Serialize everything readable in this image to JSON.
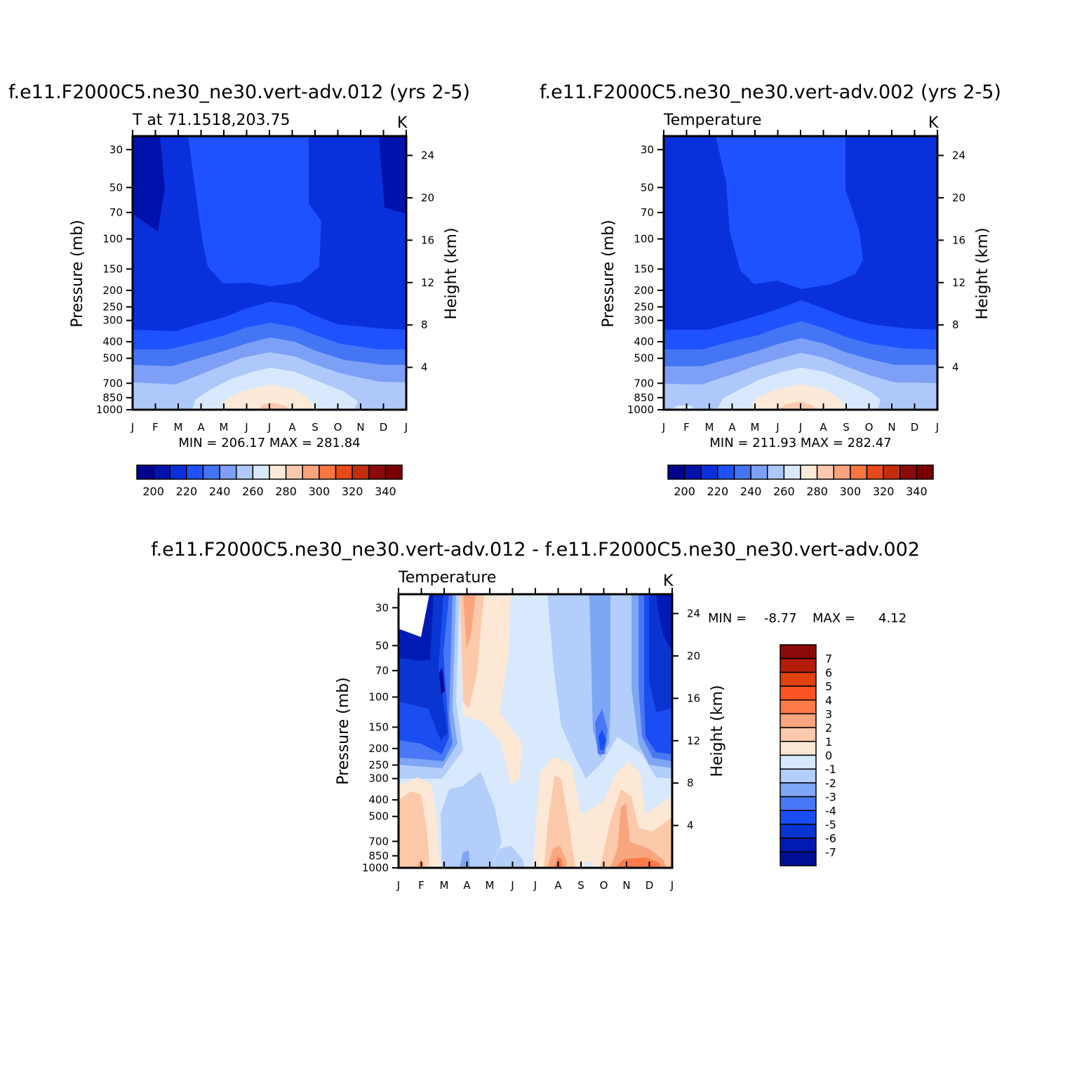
{
  "chart_data": [
    {
      "type": "heatmap",
      "title": "f.e11.F2000C5.ne30_ne30.vert-adv.012 (yrs 2-5)",
      "subtitle_left": "T at 71.1518,203.75",
      "units": "K",
      "ylabel": "Pressure (mb)",
      "ylabel_right": "Height (km)",
      "x_ticks": [
        "J",
        "F",
        "M",
        "A",
        "M",
        "J",
        "J",
        "A",
        "S",
        "O",
        "N",
        "D",
        "J"
      ],
      "y_ticks": [
        30,
        50,
        70,
        100,
        150,
        200,
        250,
        300,
        400,
        500,
        700,
        850,
        1000
      ],
      "y_right_ticks": [
        24,
        20,
        16,
        12,
        8,
        4
      ],
      "ylim": [
        1000,
        25
      ],
      "y_scale": "log",
      "stats": "MIN = 206.17 MAX = 281.84",
      "colorbar": {
        "orientation": "horizontal",
        "levels": [
          195,
          200,
          205,
          210,
          215,
          220,
          225,
          230,
          235,
          240,
          245,
          250,
          255,
          260,
          265,
          270,
          275,
          280,
          285,
          290,
          295,
          300,
          305,
          310,
          315,
          320,
          325,
          330,
          335,
          340,
          345
        ],
        "labels": [
          "200",
          "220",
          "240",
          "260",
          "280",
          "300",
          "320",
          "340"
        ]
      }
    },
    {
      "type": "heatmap",
      "title": "f.e11.F2000C5.ne30_ne30.vert-adv.002 (yrs 2-5)",
      "subtitle_left": "Temperature",
      "units": "K",
      "ylabel": "Pressure (mb)",
      "ylabel_right": "Height (km)",
      "x_ticks": [
        "J",
        "F",
        "M",
        "A",
        "M",
        "J",
        "J",
        "A",
        "S",
        "O",
        "N",
        "D",
        "J"
      ],
      "y_ticks": [
        30,
        50,
        70,
        100,
        150,
        200,
        250,
        300,
        400,
        500,
        700,
        850,
        1000
      ],
      "y_right_ticks": [
        24,
        20,
        16,
        12,
        8,
        4
      ],
      "ylim": [
        1000,
        25
      ],
      "y_scale": "log",
      "stats": "MIN = 211.93 MAX = 282.47",
      "colorbar": {
        "orientation": "horizontal",
        "labels": [
          "200",
          "220",
          "240",
          "260",
          "280",
          "300",
          "320",
          "340"
        ]
      }
    },
    {
      "type": "heatmap",
      "title": "f.e11.F2000C5.ne30_ne30.vert-adv.012 - f.e11.F2000C5.ne30_ne30.vert-adv.002",
      "subtitle_left": "Temperature",
      "units": "K",
      "ylabel": "Pressure (mb)",
      "ylabel_right": "Height (km)",
      "x_ticks": [
        "J",
        "F",
        "M",
        "A",
        "M",
        "J",
        "J",
        "A",
        "S",
        "O",
        "N",
        "D",
        "J"
      ],
      "y_ticks": [
        30,
        50,
        70,
        100,
        150,
        200,
        250,
        300,
        400,
        500,
        700,
        850,
        1000
      ],
      "y_right_ticks": [
        24,
        20,
        16,
        12,
        8,
        4
      ],
      "ylim": [
        1000,
        25
      ],
      "y_scale": "log",
      "stats_label_min": "MIN =",
      "stats_min": "-8.77",
      "stats_label_max": "MAX =",
      "stats_max": "4.12",
      "colorbar": {
        "orientation": "vertical",
        "labels": [
          "7",
          "6",
          "5",
          "4",
          "3",
          "2",
          "1",
          "0",
          "-1",
          "-2",
          "-3",
          "-4",
          "-5",
          "-6",
          "-7"
        ]
      }
    }
  ],
  "colors": {
    "abs_palette": [
      "#00008f",
      "#0012ac",
      "#0a30dc",
      "#1e52ff",
      "#4475f5",
      "#7da0f6",
      "#afc8fb",
      "#d9e9fd",
      "#fde9d7",
      "#fcc9b0",
      "#f8a37e",
      "#f87640",
      "#e8491c",
      "#c22d0d",
      "#8c0a0a"
    ],
    "diff_palette_top_to_bottom": [
      "#8c0a0a",
      "#b31e0a",
      "#e0410f",
      "#fc5424",
      "#fb7a47",
      "#f9a57d",
      "#fcc9aa",
      "#fde8d5",
      "#d9e9fd",
      "#b3cefb",
      "#7fa6f5",
      "#4a77f5",
      "#1b4ef0",
      "#0b35d0",
      "#001bb3",
      "#000f94"
    ]
  }
}
